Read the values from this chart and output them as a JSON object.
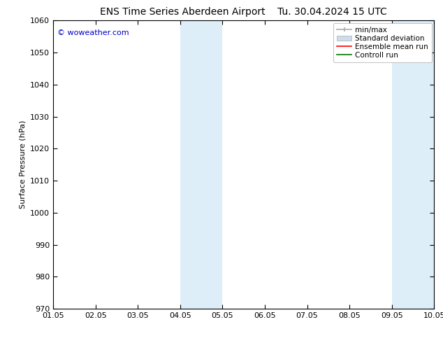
{
  "title_left": "ENS Time Series Aberdeen Airport",
  "title_right": "Tu. 30.04.2024 15 UTC",
  "ylabel": "Surface Pressure (hPa)",
  "ylim": [
    970,
    1060
  ],
  "yticks": [
    970,
    980,
    990,
    1000,
    1010,
    1020,
    1030,
    1040,
    1050,
    1060
  ],
  "xtick_labels": [
    "01.05",
    "02.05",
    "03.05",
    "04.05",
    "05.05",
    "06.05",
    "07.05",
    "08.05",
    "09.05",
    "10.05"
  ],
  "xlim": [
    0,
    9
  ],
  "watermark": "© woweather.com",
  "watermark_color": "#0000cc",
  "bg_color": "#ffffff",
  "shaded_regions": [
    {
      "x_start": 3.0,
      "x_end": 4.0,
      "color": "#ddeef8"
    },
    {
      "x_start": 8.0,
      "x_end": 9.0,
      "color": "#ddeef8"
    }
  ],
  "legend_items": [
    {
      "label": "min/max",
      "color": "#aaaaaa",
      "style": "line_with_cap"
    },
    {
      "label": "Standard deviation",
      "color": "#ccdded",
      "style": "filled_box"
    },
    {
      "label": "Ensemble mean run",
      "color": "#ff0000",
      "style": "line"
    },
    {
      "label": "Controll run",
      "color": "#007700",
      "style": "line"
    }
  ],
  "title_fontsize": 10,
  "axis_fontsize": 8,
  "tick_fontsize": 8,
  "legend_fontsize": 7.5,
  "spine_color": "#000000"
}
